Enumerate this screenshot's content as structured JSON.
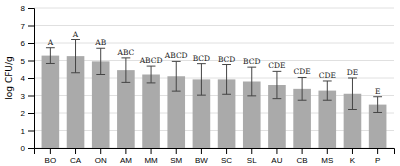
{
  "chart_data": {
    "type": "bar",
    "categories": [
      "BO",
      "CA",
      "ON",
      "AM",
      "MM",
      "SM",
      "BW",
      "SC",
      "SL",
      "AU",
      "CB",
      "MS",
      "K",
      "P"
    ],
    "values": [
      5.28,
      5.25,
      4.95,
      4.45,
      4.2,
      4.1,
      3.92,
      3.92,
      3.8,
      3.6,
      3.38,
      3.28,
      3.1,
      2.48
    ],
    "errors": [
      0.45,
      0.95,
      0.75,
      0.7,
      0.48,
      0.85,
      0.9,
      0.85,
      0.82,
      0.78,
      0.65,
      0.55,
      0.9,
      0.45
    ],
    "annotations": [
      "A",
      "A",
      "AB",
      "ABC",
      "ABCD",
      "ABCD",
      "BCD",
      "BCD",
      "BCD",
      "CDE",
      "CDE",
      "CDE",
      "DE",
      "E"
    ],
    "color": "#aaaaaa",
    "ylabel": "log CFU/g",
    "ylim": [
      0,
      8
    ],
    "yticks": [
      0,
      1,
      2,
      3,
      4,
      5,
      6,
      7,
      8
    ],
    "grid": true
  }
}
